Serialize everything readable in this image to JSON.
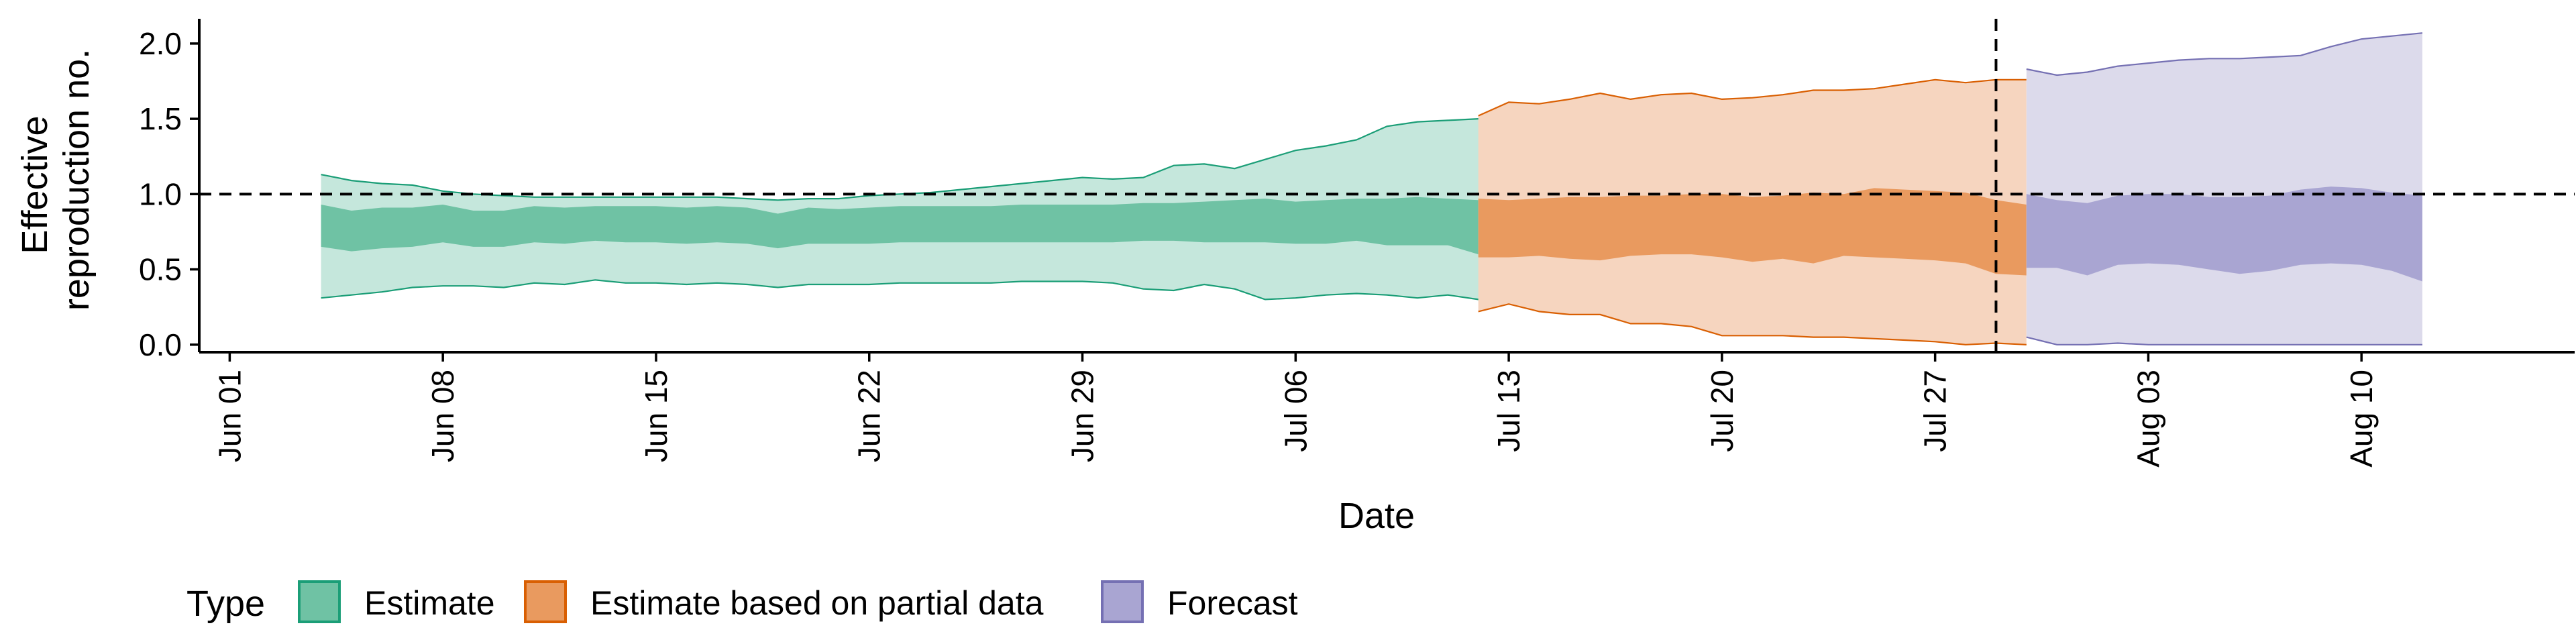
{
  "chart_data": {
    "type": "area",
    "xlabel": "Date",
    "ylabel": [
      "Effective",
      "reproduction no."
    ],
    "ylim": [
      -0.05,
      2.2
    ],
    "yticks": [
      0.0,
      0.5,
      1.0,
      1.5,
      2.0
    ],
    "ytick_labels": [
      "0.0",
      "0.5",
      "1.0",
      "1.5",
      "2.0"
    ],
    "xlim": [
      "2020-05-31",
      "2020-08-17"
    ],
    "xticks": [
      "2020-06-01",
      "2020-06-08",
      "2020-06-15",
      "2020-06-22",
      "2020-06-29",
      "2020-07-06",
      "2020-07-13",
      "2020-07-20",
      "2020-07-27",
      "2020-08-03",
      "2020-08-10"
    ],
    "xtick_labels": [
      "Jun 01",
      "Jun 08",
      "Jun 15",
      "Jun 22",
      "Jun 29",
      "Jul 06",
      "Jul 13",
      "Jul 20",
      "Jul 27",
      "Aug 03",
      "Aug 10"
    ],
    "reference_line": {
      "y": 1.0,
      "style": "dashed"
    },
    "vertical_line": {
      "x": "2020-07-29",
      "style": "dashed"
    },
    "legend": {
      "title": "Type",
      "position": "bottom-left",
      "entries": [
        {
          "label": "Estimate",
          "fill": "#6fc2a4",
          "stroke": "#1b9e77"
        },
        {
          "label": "Estimate based on partial data",
          "fill": "#e99a5f",
          "stroke": "#d95f02"
        },
        {
          "label": "Forecast",
          "fill": "#a9a5d2",
          "stroke": "#7570b3"
        }
      ]
    },
    "series": [
      {
        "name": "Estimate",
        "outer_fill": "#c5e7dc",
        "inner_fill": "#6fc2a4",
        "stroke": "#1b9e77",
        "start": "2020-06-04",
        "outer_lower": [
          0.31,
          0.33,
          0.35,
          0.38,
          0.39,
          0.39,
          0.38,
          0.41,
          0.4,
          0.43,
          0.41,
          0.41,
          0.4,
          0.41,
          0.4,
          0.38,
          0.4,
          0.4,
          0.4,
          0.41,
          0.41,
          0.41,
          0.41,
          0.42,
          0.42,
          0.42,
          0.41,
          0.37,
          0.36,
          0.4,
          0.37,
          0.3,
          0.31,
          0.33,
          0.34,
          0.33,
          0.31,
          0.33,
          0.3,
          0.27
        ],
        "inner_lower": [
          0.65,
          0.62,
          0.64,
          0.65,
          0.68,
          0.65,
          0.65,
          0.68,
          0.67,
          0.69,
          0.68,
          0.68,
          0.67,
          0.68,
          0.67,
          0.64,
          0.67,
          0.67,
          0.67,
          0.68,
          0.68,
          0.68,
          0.68,
          0.68,
          0.68,
          0.68,
          0.68,
          0.69,
          0.69,
          0.68,
          0.68,
          0.68,
          0.67,
          0.67,
          0.69,
          0.66,
          0.66,
          0.66,
          0.6,
          0.58
        ],
        "inner_upper": [
          0.93,
          0.89,
          0.91,
          0.91,
          0.93,
          0.89,
          0.89,
          0.92,
          0.91,
          0.92,
          0.92,
          0.92,
          0.91,
          0.92,
          0.91,
          0.87,
          0.91,
          0.9,
          0.91,
          0.92,
          0.92,
          0.92,
          0.92,
          0.93,
          0.93,
          0.93,
          0.93,
          0.94,
          0.94,
          0.95,
          0.96,
          0.97,
          0.95,
          0.96,
          0.97,
          0.97,
          0.98,
          0.97,
          0.96,
          0.95
        ],
        "outer_upper": [
          1.13,
          1.09,
          1.07,
          1.06,
          1.02,
          1.0,
          0.99,
          0.98,
          0.98,
          0.98,
          0.98,
          0.98,
          0.98,
          0.98,
          0.97,
          0.96,
          0.97,
          0.97,
          0.99,
          1.0,
          1.01,
          1.03,
          1.05,
          1.07,
          1.09,
          1.11,
          1.1,
          1.11,
          1.19,
          1.2,
          1.17,
          1.23,
          1.29,
          1.32,
          1.36,
          1.45,
          1.48,
          1.49,
          1.5,
          1.5
        ]
      },
      {
        "name": "Estimate based on partial data",
        "outer_fill": "#f6d5bf",
        "inner_fill": "#e99a5f",
        "stroke": "#d95f02",
        "start": "2020-07-12",
        "outer_lower": [
          0.22,
          0.27,
          0.22,
          0.2,
          0.2,
          0.14,
          0.14,
          0.12,
          0.06,
          0.06,
          0.06,
          0.05,
          0.05,
          0.04,
          0.03,
          0.02,
          0.0,
          0.01,
          0.0
        ],
        "inner_lower": [
          0.58,
          0.58,
          0.59,
          0.57,
          0.56,
          0.59,
          0.6,
          0.6,
          0.58,
          0.55,
          0.57,
          0.54,
          0.59,
          0.58,
          0.57,
          0.56,
          0.54,
          0.47,
          0.46
        ],
        "inner_upper": [
          0.97,
          0.96,
          0.97,
          0.98,
          0.98,
          0.99,
          0.99,
          1.0,
          1.0,
          0.98,
          0.99,
          1.01,
          1.0,
          1.04,
          1.03,
          1.02,
          1.01,
          0.96,
          0.93
        ],
        "outer_upper": [
          1.52,
          1.61,
          1.6,
          1.63,
          1.67,
          1.63,
          1.66,
          1.67,
          1.63,
          1.64,
          1.66,
          1.69,
          1.69,
          1.7,
          1.73,
          1.76,
          1.74,
          1.76,
          1.76
        ]
      },
      {
        "name": "Forecast",
        "outer_fill": "#dcdaeb",
        "inner_fill": "#a9a5d2",
        "stroke": "#7570b3",
        "start": "2020-07-30",
        "outer_lower": [
          0.05,
          0.0,
          0.0,
          0.01,
          0.0,
          0.0,
          0.0,
          0.0,
          0.0,
          0.0,
          0.0,
          0.0,
          0.0,
          0.0
        ],
        "inner_lower": [
          0.51,
          0.51,
          0.46,
          0.53,
          0.54,
          0.53,
          0.5,
          0.47,
          0.49,
          0.53,
          0.54,
          0.53,
          0.49,
          0.42
        ],
        "inner_upper": [
          1.0,
          0.96,
          0.94,
          0.99,
          1.0,
          1.0,
          0.98,
          0.98,
          0.99,
          1.03,
          1.05,
          1.04,
          1.01,
          0.99
        ],
        "outer_upper": [
          1.83,
          1.79,
          1.81,
          1.85,
          1.87,
          1.89,
          1.9,
          1.9,
          1.91,
          1.92,
          1.98,
          2.03,
          2.05,
          2.07
        ]
      }
    ]
  }
}
